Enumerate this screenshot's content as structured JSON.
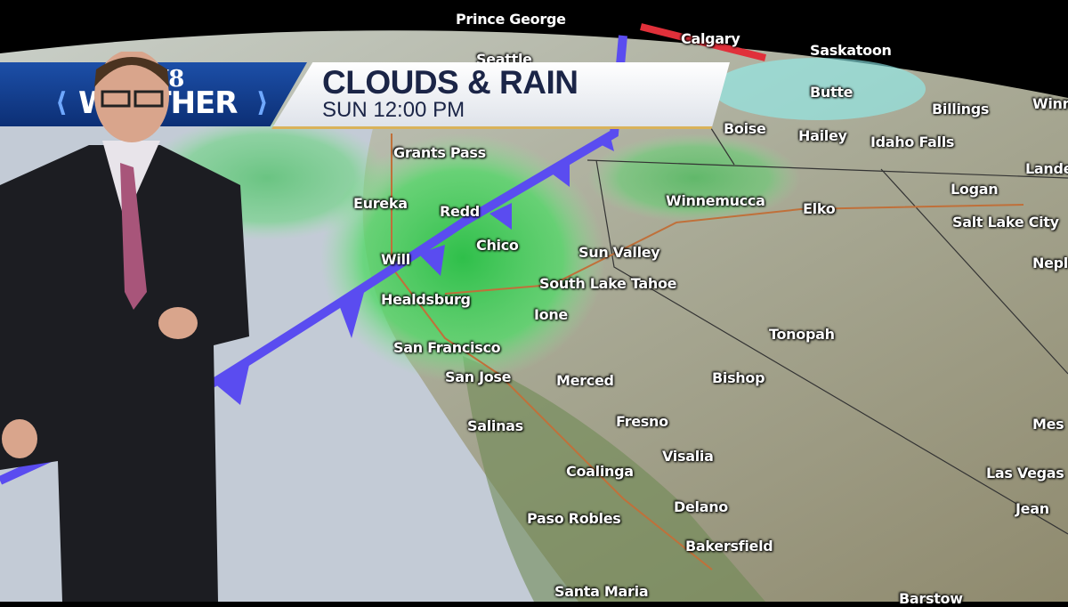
{
  "logo": {
    "station": "W8",
    "brand": "WEATHER",
    "text": "W8 WEATHER"
  },
  "banner": {
    "title": "CLOUDS & RAIN",
    "time": "SUN 12:00 PM"
  },
  "colors": {
    "logo_blue": "#1c4fa8",
    "title_text": "#1b2547",
    "rain_green": "#3fcf5a",
    "cold_front": "#5a4cf0",
    "warm_front": "#e0303a",
    "snow_cyan": "#8ff0f0"
  },
  "map": {
    "features": [
      "cold-front",
      "rain",
      "clouds",
      "state-borders",
      "highways"
    ],
    "cities": [
      "Prince George",
      "Calgary",
      "Saskatoon",
      "Seattle",
      "Butte",
      "Billings",
      "Winnipeg",
      "Boise",
      "Hailey",
      "Idaho Falls",
      "Lander",
      "Grants Pass",
      "Logan",
      "Salt Lake City",
      "Eureka",
      "Redding",
      "Winnemucca",
      "Elko",
      "Chico",
      "Sun Valley",
      "Willits",
      "Nephi",
      "South Lake Tahoe",
      "Healdsburg",
      "Ione",
      "Tonopah",
      "San Francisco",
      "San Jose",
      "Merced",
      "Bishop",
      "Fresno",
      "Salinas",
      "Mesquite",
      "Visalia",
      "Coalinga",
      "Las Vegas",
      "Delano",
      "Jean",
      "Paso Robles",
      "Bakersfield",
      "Santa Maria",
      "Barstow"
    ],
    "city_labels": [
      "Prince George",
      "Calgary",
      "Saskatoon",
      "Seattle",
      "Butte",
      "Billings",
      "Winn",
      "Boise",
      "Hailey",
      "Idaho Falls",
      "Lande",
      "Grants Pass",
      "Logan",
      "Salt Lake City",
      "Eureka",
      "Redd",
      "Winnemucca",
      "Elko",
      "Chico",
      "Sun Valley",
      "Will",
      "Nepl",
      "South Lake Tahoe",
      "Healdsburg",
      "Ione",
      "Tonopah",
      "San Francisco",
      "San Jose",
      "Merced",
      "Bishop",
      "Fresno",
      "Salinas",
      "Mes",
      "Visalia",
      "Coalinga",
      "Las Vegas",
      "Delano",
      "Jean",
      "Paso Robles",
      "Bakersfield",
      "Santa Maria",
      "Barstow"
    ]
  }
}
